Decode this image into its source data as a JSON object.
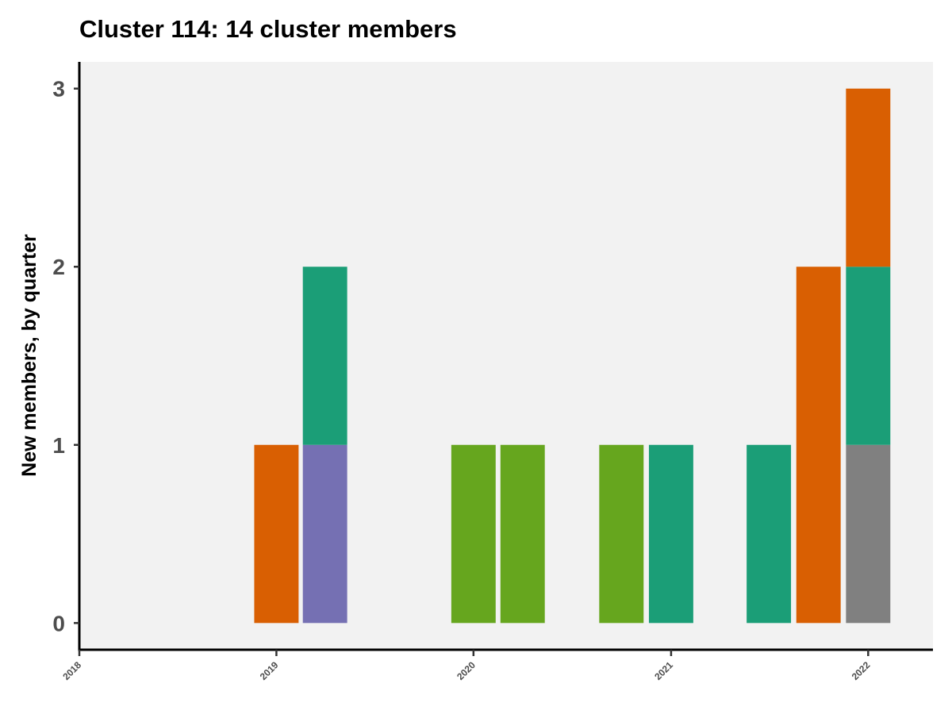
{
  "chart_data": {
    "type": "bar",
    "stacked": true,
    "title": "Cluster 114: 14 cluster members",
    "xlabel": "",
    "ylabel": "New members, by quarter",
    "x_axis": {
      "type": "date",
      "range": [
        "2018-01-01",
        "2022-05-01"
      ],
      "ticks": [
        "2018",
        "2019",
        "2020",
        "2021",
        "2022"
      ]
    },
    "y_axis": {
      "range": [
        -0.15,
        3.15
      ],
      "ticks": [
        0,
        1,
        2,
        3
      ]
    },
    "grid": false,
    "legend": "none",
    "panel_background": "#f2f2f2",
    "bars": [
      {
        "quarter": "2019-01-01",
        "segments": [
          {
            "value": 1,
            "color": "#d95f02"
          }
        ]
      },
      {
        "quarter": "2019-04-01",
        "segments": [
          {
            "value": 1,
            "color": "#7570b3"
          },
          {
            "value": 1,
            "color": "#1b9e77"
          }
        ]
      },
      {
        "quarter": "2020-01-01",
        "segments": [
          {
            "value": 1,
            "color": "#66a61e"
          }
        ]
      },
      {
        "quarter": "2020-04-01",
        "segments": [
          {
            "value": 1,
            "color": "#66a61e"
          }
        ]
      },
      {
        "quarter": "2020-10-01",
        "segments": [
          {
            "value": 1,
            "color": "#66a61e"
          }
        ]
      },
      {
        "quarter": "2021-01-01",
        "segments": [
          {
            "value": 1,
            "color": "#1b9e77"
          }
        ]
      },
      {
        "quarter": "2021-07-01",
        "segments": [
          {
            "value": 1,
            "color": "#1b9e77"
          }
        ]
      },
      {
        "quarter": "2021-10-01",
        "segments": [
          {
            "value": 2,
            "color": "#d95f02"
          }
        ]
      },
      {
        "quarter": "2022-01-01",
        "segments": [
          {
            "value": 1,
            "color": "#808080"
          },
          {
            "value": 1,
            "color": "#1b9e77"
          },
          {
            "value": 1,
            "color": "#d95f02"
          }
        ]
      }
    ]
  }
}
